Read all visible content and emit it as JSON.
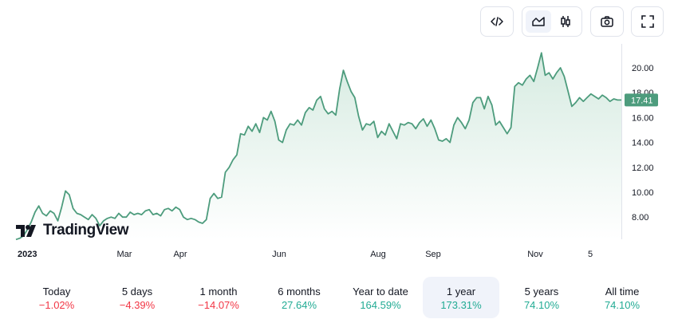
{
  "toolbar": {
    "buttons": [
      {
        "name": "embed",
        "icon": "code-icon"
      },
      {
        "name": "area-chart",
        "icon": "area-chart-icon",
        "active": true
      },
      {
        "name": "candles",
        "icon": "candlestick-icon"
      },
      {
        "name": "snapshot",
        "icon": "camera-icon"
      },
      {
        "name": "fullscreen",
        "icon": "fullscreen-icon"
      }
    ]
  },
  "logo": {
    "text": "TradingView",
    "icon": "tradingview-logo-icon"
  },
  "colors": {
    "line": "#4d9c7d",
    "area_top": "#d6ebe1",
    "area_bottom": "#ffffff",
    "price_tag": "#4d9c7d",
    "negative": "#f23645",
    "positive": "#22ab94"
  },
  "chart_data": {
    "type": "area",
    "ylim": [
      6.0,
      21.5
    ],
    "yticks": [
      8.0,
      10.0,
      12.0,
      14.0,
      16.0,
      18.0,
      20.0
    ],
    "ytick_labels": [
      "8.00",
      "10.00",
      "12.00",
      "14.00",
      "16.00",
      "18.00",
      "20.00"
    ],
    "xlabels": [
      "2023",
      "Mar",
      "Apr",
      "Jun",
      "Aug",
      "Sep",
      "Nov",
      "5"
    ],
    "last_price": 17.41,
    "last_price_label": "17.41",
    "grid": false,
    "x": [
      0,
      1,
      2,
      3,
      4,
      5,
      6,
      7,
      8,
      9,
      10,
      11,
      12,
      13,
      14,
      15,
      16,
      17,
      18,
      19,
      20,
      21,
      22,
      23,
      24,
      25,
      26,
      27,
      28,
      29,
      30,
      31,
      32,
      33,
      34,
      35,
      36,
      37,
      38,
      39,
      40,
      41,
      42,
      43,
      44,
      45,
      46,
      47,
      48,
      49,
      50,
      51,
      52,
      53,
      54,
      55,
      56,
      57,
      58,
      59,
      60,
      61,
      62,
      63,
      64,
      65,
      66,
      67,
      68,
      69,
      70,
      71,
      72,
      73,
      74,
      75,
      76,
      77,
      78,
      79,
      80,
      81,
      82,
      83,
      84,
      85,
      86,
      87,
      88,
      89,
      90,
      91,
      92,
      93,
      94,
      95,
      96,
      97,
      98,
      99,
      100,
      101,
      102,
      103,
      104,
      105,
      106,
      107,
      108,
      109,
      110,
      111,
      112,
      113,
      114,
      115,
      116,
      117,
      118,
      119,
      120,
      121,
      122,
      123,
      124,
      125,
      126,
      127,
      128,
      129,
      130,
      131,
      132,
      133,
      134,
      135,
      136,
      137,
      138,
      139,
      140,
      141,
      142,
      143,
      144,
      145,
      146,
      147,
      148,
      149,
      150,
      151,
      152,
      153,
      154,
      155,
      156,
      157,
      158,
      159
    ],
    "values": [
      6.2,
      6.3,
      6.5,
      7.0,
      7.6,
      8.4,
      8.9,
      8.3,
      8.1,
      8.5,
      8.3,
      7.7,
      8.8,
      10.1,
      9.8,
      8.7,
      8.3,
      8.2,
      8.0,
      7.8,
      8.2,
      7.9,
      7.3,
      7.7,
      7.9,
      8.0,
      7.9,
      8.3,
      8.0,
      8.0,
      8.4,
      8.2,
      8.3,
      8.2,
      8.5,
      8.6,
      8.2,
      8.3,
      8.1,
      8.6,
      8.7,
      8.5,
      8.8,
      8.6,
      8.0,
      7.8,
      7.9,
      7.8,
      7.6,
      7.5,
      7.8,
      9.5,
      9.9,
      9.5,
      9.6,
      11.6,
      12.0,
      12.6,
      13.0,
      14.7,
      14.6,
      15.3,
      14.9,
      15.5,
      14.8,
      16.0,
      15.8,
      16.5,
      15.7,
      14.2,
      14.0,
      15.0,
      15.5,
      15.4,
      15.8,
      15.4,
      16.4,
      16.8,
      16.6,
      17.4,
      17.7,
      16.7,
      16.3,
      16.5,
      16.2,
      18.3,
      19.8,
      18.9,
      18.1,
      17.6,
      16.1,
      15.0,
      15.5,
      15.4,
      15.7,
      14.4,
      14.9,
      14.6,
      15.5,
      14.9,
      14.3,
      15.5,
      15.4,
      15.6,
      15.5,
      15.1,
      15.6,
      15.9,
      15.3,
      15.8,
      15.1,
      14.2,
      14.1,
      14.3,
      14.0,
      15.4,
      16.0,
      15.6,
      15.1,
      15.8,
      17.2,
      17.6,
      17.6,
      16.7,
      17.7,
      17.0,
      15.4,
      15.7,
      15.2,
      14.7,
      15.2,
      18.5,
      18.8,
      18.6,
      19.1,
      19.4,
      18.9,
      20.0,
      21.2,
      19.4,
      19.6,
      19.1,
      19.6,
      20.0,
      19.3,
      18.1,
      16.9,
      17.2,
      17.6,
      17.3,
      17.6,
      17.9,
      17.7,
      17.5,
      17.8,
      17.6,
      17.3,
      17.5,
      17.41,
      17.41
    ]
  },
  "periods": [
    {
      "label": "Today",
      "value": "−1.02%",
      "dir": "neg"
    },
    {
      "label": "5 days",
      "value": "−4.39%",
      "dir": "neg"
    },
    {
      "label": "1 month",
      "value": "−14.07%",
      "dir": "neg"
    },
    {
      "label": "6 months",
      "value": "27.64%",
      "dir": "pos"
    },
    {
      "label": "Year to date",
      "value": "164.59%",
      "dir": "pos"
    },
    {
      "label": "1 year",
      "value": "173.31%",
      "dir": "pos",
      "active": true
    },
    {
      "label": "5 years",
      "value": "74.10%",
      "dir": "pos"
    },
    {
      "label": "All time",
      "value": "74.10%",
      "dir": "pos"
    }
  ]
}
